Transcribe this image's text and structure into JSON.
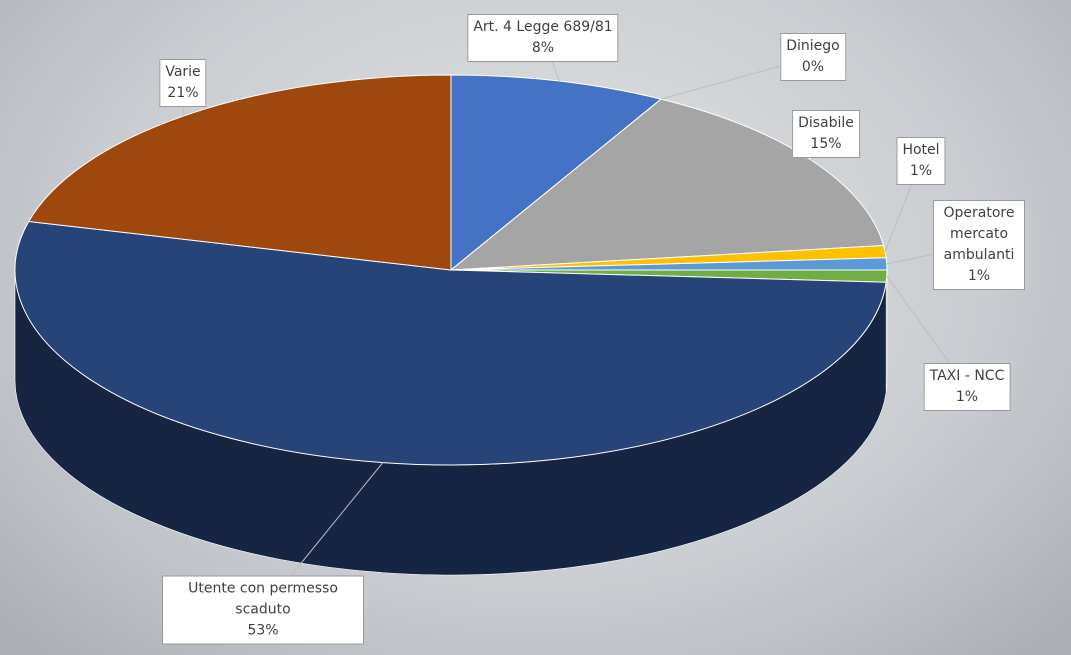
{
  "chart_data": {
    "type": "pie3d",
    "categories": [
      "Art. 4 Legge 689/81",
      "Diniego",
      "Disabile",
      "Hotel",
      "Operatore mercato ambulanti",
      "TAXI - NCC",
      "Utente con permesso scaduto",
      "Varie"
    ],
    "values": [
      8,
      0,
      15,
      1,
      1,
      1,
      53,
      21
    ],
    "value_labels": [
      "8%",
      "0%",
      "15%",
      "1%",
      "1%",
      "1%",
      "53%",
      "21%"
    ],
    "colors": [
      "#4472c4",
      "#ed7d31",
      "#a5a5a5",
      "#ffc000",
      "#5b9bd5",
      "#70ad47",
      "#264478",
      "#9e480e"
    ]
  }
}
